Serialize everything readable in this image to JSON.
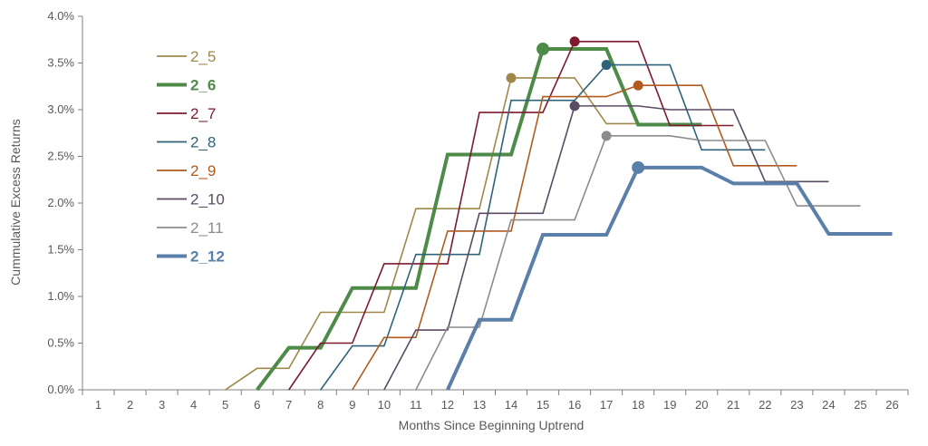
{
  "chart_data": {
    "type": "line",
    "title": "",
    "xlabel": "Months Since Beginning Uptrend",
    "ylabel": "Cummulative Excess Returns",
    "x_categories": [
      "1",
      "2",
      "3",
      "4",
      "5",
      "6",
      "7",
      "8",
      "9",
      "10",
      "11",
      "12",
      "13",
      "14",
      "15",
      "16",
      "17",
      "18",
      "19",
      "20",
      "21",
      "22",
      "23",
      "24",
      "25",
      "26"
    ],
    "ylim": [
      0,
      4.0
    ],
    "y_ticks": [
      "0.0%",
      "0.5%",
      "1.0%",
      "1.5%",
      "2.0%",
      "2.5%",
      "3.0%",
      "3.5%",
      "4.0%"
    ],
    "grid": false,
    "legend_position": "top-left",
    "step": true,
    "series": [
      {
        "name": "2_5",
        "color": "#A0884B",
        "bold": false,
        "points": [
          [
            5,
            0
          ],
          [
            6,
            0.23
          ],
          [
            7,
            0.23
          ],
          [
            8,
            0.83
          ],
          [
            9,
            0.83
          ],
          [
            10,
            0.83
          ],
          [
            11,
            1.94
          ],
          [
            12,
            1.94
          ],
          [
            13,
            1.94
          ],
          [
            14,
            3.34
          ],
          [
            15,
            3.34
          ],
          [
            16,
            3.34
          ],
          [
            17,
            2.85
          ],
          [
            18,
            2.85
          ],
          [
            19,
            2.85
          ],
          [
            20,
            2.85
          ]
        ],
        "peak": [
          14,
          3.34
        ]
      },
      {
        "name": "2_6",
        "color": "#4E8A48",
        "bold": true,
        "points": [
          [
            6,
            0
          ],
          [
            7,
            0.45
          ],
          [
            8,
            0.45
          ],
          [
            9,
            1.09
          ],
          [
            10,
            1.09
          ],
          [
            11,
            1.09
          ],
          [
            12,
            2.52
          ],
          [
            13,
            2.52
          ],
          [
            14,
            2.52
          ],
          [
            15,
            3.65
          ],
          [
            16,
            3.65
          ],
          [
            17,
            3.65
          ],
          [
            18,
            2.84
          ],
          [
            19,
            2.84
          ],
          [
            20,
            2.84
          ]
        ],
        "peak": [
          15,
          3.65
        ]
      },
      {
        "name": "2_7",
        "color": "#7D1A2E",
        "bold": false,
        "points": [
          [
            7,
            0
          ],
          [
            8,
            0.5
          ],
          [
            9,
            0.5
          ],
          [
            10,
            1.35
          ],
          [
            11,
            1.35
          ],
          [
            12,
            1.35
          ],
          [
            13,
            2.97
          ],
          [
            14,
            2.97
          ],
          [
            15,
            2.97
          ],
          [
            16,
            3.73
          ],
          [
            17,
            3.73
          ],
          [
            18,
            3.73
          ],
          [
            19,
            2.83
          ],
          [
            20,
            2.83
          ],
          [
            21,
            2.83
          ]
        ],
        "peak": [
          16,
          3.73
        ]
      },
      {
        "name": "2_8",
        "color": "#2E6379",
        "bold": false,
        "points": [
          [
            8,
            0
          ],
          [
            9,
            0.47
          ],
          [
            10,
            0.47
          ],
          [
            11,
            1.45
          ],
          [
            12,
            1.45
          ],
          [
            13,
            1.45
          ],
          [
            14,
            3.1
          ],
          [
            15,
            3.1
          ],
          [
            16,
            3.1
          ],
          [
            17,
            3.48
          ],
          [
            18,
            3.48
          ],
          [
            19,
            3.48
          ],
          [
            20,
            2.57
          ],
          [
            21,
            2.57
          ],
          [
            22,
            2.57
          ]
        ],
        "peak": [
          17,
          3.48
        ]
      },
      {
        "name": "2_9",
        "color": "#B15A1E",
        "bold": false,
        "points": [
          [
            9,
            0
          ],
          [
            10,
            0.56
          ],
          [
            11,
            0.56
          ],
          [
            12,
            1.7
          ],
          [
            13,
            1.7
          ],
          [
            14,
            1.7
          ],
          [
            15,
            3.14
          ],
          [
            16,
            3.14
          ],
          [
            17,
            3.14
          ],
          [
            18,
            3.26
          ],
          [
            19,
            3.26
          ],
          [
            20,
            3.26
          ],
          [
            21,
            2.4
          ],
          [
            22,
            2.4
          ],
          [
            23,
            2.4
          ]
        ],
        "peak": [
          18,
          3.26
        ]
      },
      {
        "name": "2_10",
        "color": "#5A4A63",
        "bold": false,
        "points": [
          [
            10,
            0
          ],
          [
            11,
            0.64
          ],
          [
            12,
            0.64
          ],
          [
            13,
            1.89
          ],
          [
            14,
            1.89
          ],
          [
            15,
            1.89
          ],
          [
            16,
            3.04
          ],
          [
            17,
            3.04
          ],
          [
            18,
            3.04
          ],
          [
            19,
            3.0
          ],
          [
            20,
            3.0
          ],
          [
            21,
            3.0
          ],
          [
            22,
            2.23
          ],
          [
            23,
            2.23
          ],
          [
            24,
            2.23
          ]
        ],
        "peak": [
          16,
          3.04
        ]
      },
      {
        "name": "2_11",
        "color": "#8C8C8C",
        "bold": false,
        "points": [
          [
            11,
            0
          ],
          [
            12,
            0.67
          ],
          [
            13,
            0.67
          ],
          [
            14,
            1.82
          ],
          [
            15,
            1.82
          ],
          [
            16,
            1.82
          ],
          [
            17,
            2.72
          ],
          [
            18,
            2.72
          ],
          [
            19,
            2.72
          ],
          [
            20,
            2.67
          ],
          [
            21,
            2.67
          ],
          [
            22,
            2.67
          ],
          [
            23,
            1.97
          ],
          [
            24,
            1.97
          ],
          [
            25,
            1.97
          ]
        ],
        "peak": [
          17,
          2.72
        ]
      },
      {
        "name": "2_12",
        "color": "#5A7FA8",
        "bold": true,
        "points": [
          [
            12,
            0
          ],
          [
            13,
            0.75
          ],
          [
            14,
            0.75
          ],
          [
            15,
            1.66
          ],
          [
            16,
            1.66
          ],
          [
            17,
            1.66
          ],
          [
            18,
            2.38
          ],
          [
            19,
            2.38
          ],
          [
            20,
            2.38
          ],
          [
            21,
            2.21
          ],
          [
            22,
            2.21
          ],
          [
            23,
            2.21
          ],
          [
            24,
            1.67
          ],
          [
            25,
            1.67
          ],
          [
            26,
            1.67
          ]
        ],
        "peak": [
          18,
          2.38
        ]
      }
    ]
  }
}
